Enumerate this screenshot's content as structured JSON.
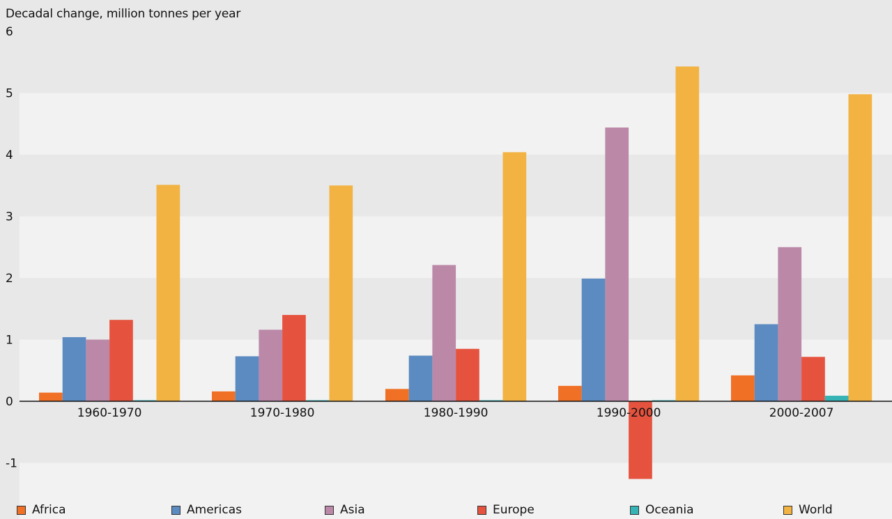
{
  "chart_data": {
    "type": "bar",
    "ylabel": "Decadal change, million tonnes per year",
    "categories": [
      "1960-1970",
      "1970-1980",
      "1980-1990",
      "1990-2000",
      "2000-2007"
    ],
    "series": [
      {
        "name": "Africa",
        "color": "#f07025",
        "values": [
          0.14,
          0.16,
          0.2,
          0.25,
          0.42
        ]
      },
      {
        "name": "Americas",
        "color": "#5b8bc0",
        "values": [
          1.04,
          0.73,
          0.74,
          1.99,
          1.25
        ]
      },
      {
        "name": "Asia",
        "color": "#bb88a8",
        "values": [
          1.0,
          1.16,
          2.21,
          4.44,
          2.5
        ]
      },
      {
        "name": "Europe",
        "color": "#e5533e",
        "values": [
          1.32,
          1.4,
          0.85,
          -1.26,
          0.72
        ]
      },
      {
        "name": "Oceania",
        "color": "#36b3b5",
        "values": [
          0.01,
          0.01,
          0.01,
          0.01,
          0.09
        ]
      },
      {
        "name": "World",
        "color": "#f2b343",
        "values": [
          3.51,
          3.5,
          4.04,
          5.43,
          4.98
        ]
      }
    ],
    "ylim": [
      -1.25,
      6
    ],
    "yticks": [
      -1,
      0,
      1,
      2,
      3,
      4,
      5,
      6
    ],
    "ytick_labels": [
      "-1",
      "0",
      "1",
      "2",
      "3",
      "4",
      "5",
      "6"
    ],
    "grid": "alternating horizontal bands",
    "legend_position": "bottom"
  }
}
